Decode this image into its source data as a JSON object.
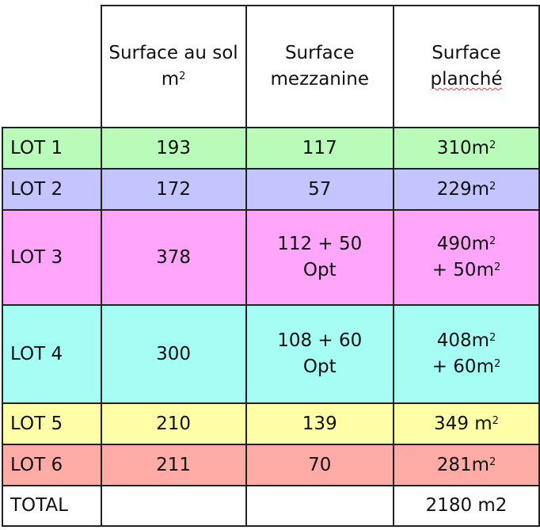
{
  "header": {
    "col1": "Surface au sol m",
    "col1_sup": "2",
    "col2": "Surface mezzanine",
    "col3_a": "Surface",
    "col3_b": "planché"
  },
  "rows": [
    {
      "label": "LOT 1",
      "sol": "193",
      "mezz": "117",
      "planche": "310m",
      "planche_sup": "2",
      "planche2": "",
      "color": "#b9fcb9"
    },
    {
      "label": "LOT 2",
      "sol": "172",
      "mezz": "57",
      "planche": "229m",
      "planche_sup": "2",
      "planche2": "",
      "color": "#c4c4ff"
    },
    {
      "label": "LOT 3",
      "sol": "378",
      "mezz": "112 + 50 Opt",
      "planche": "490m",
      "planche_sup": "2",
      "planche2": "+ 50m",
      "color": "#ffa6fb"
    },
    {
      "label": "LOT 4",
      "sol": "300",
      "mezz": "108 + 60 Opt",
      "planche": "408m",
      "planche_sup": "2",
      "planche2": "+ 60m",
      "color": "#a6fdf4"
    },
    {
      "label": "LOT 5",
      "sol": "210",
      "mezz": "139",
      "planche": "349 m",
      "planche_sup": "2",
      "planche2": "",
      "color": "#ffffa8"
    },
    {
      "label": "LOT 6",
      "sol": "211",
      "mezz": "70",
      "planche": "281m",
      "planche_sup": "2",
      "planche2": "",
      "color": "#ffaca6"
    }
  ],
  "total": {
    "label": "TOTAL",
    "planche": "2180 m2"
  }
}
